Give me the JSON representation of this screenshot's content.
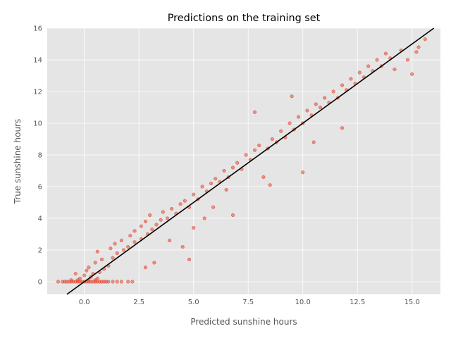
{
  "chart_data": {
    "type": "scatter",
    "title": "Predictions on the training set",
    "xlabel": "Predicted sunshine hours",
    "ylabel": "True sunshine hours",
    "xlim": [
      -1.7,
      16.3
    ],
    "ylim": [
      -0.8,
      16
    ],
    "xticks": [
      "0.0",
      "2.5",
      "5.0",
      "7.5",
      "10.0",
      "12.5",
      "15.0"
    ],
    "yticks": [
      "0",
      "2",
      "4",
      "6",
      "8",
      "10",
      "12",
      "14",
      "16"
    ],
    "grid": true,
    "reference_line": {
      "label": "y = x",
      "slope": 1,
      "intercept": 0
    },
    "point_color": "#E24A33",
    "background_color": "#E5E5E5",
    "series": [
      {
        "points": [
          [
            -1.2,
            0
          ],
          [
            -1.0,
            0
          ],
          [
            -0.9,
            0
          ],
          [
            -0.8,
            0
          ],
          [
            -0.7,
            0
          ],
          [
            -0.6,
            0
          ],
          [
            -0.5,
            0
          ],
          [
            -0.4,
            0
          ],
          [
            -0.3,
            0
          ],
          [
            -0.2,
            0
          ],
          [
            -0.1,
            0
          ],
          [
            0.0,
            0
          ],
          [
            0.1,
            0
          ],
          [
            0.2,
            0
          ],
          [
            0.3,
            0
          ],
          [
            0.4,
            0
          ],
          [
            0.5,
            0
          ],
          [
            0.6,
            0
          ],
          [
            0.7,
            0
          ],
          [
            0.8,
            0
          ],
          [
            0.9,
            0
          ],
          [
            1.0,
            0
          ],
          [
            1.1,
            0
          ],
          [
            1.3,
            0
          ],
          [
            1.5,
            0
          ],
          [
            1.7,
            0
          ],
          [
            2.0,
            0
          ],
          [
            2.2,
            0
          ],
          [
            -0.6,
            0.1
          ],
          [
            -0.3,
            0.1
          ],
          [
            0.2,
            0.1
          ],
          [
            0.5,
            0.1
          ],
          [
            -0.2,
            0.2
          ],
          [
            0.3,
            0.3
          ],
          [
            0.6,
            0.2
          ],
          [
            0.0,
            0.4
          ],
          [
            0.4,
            0.5
          ],
          [
            -0.4,
            0.5
          ],
          [
            0.7,
            0.6
          ],
          [
            0.1,
            0.7
          ],
          [
            0.9,
            0.8
          ],
          [
            0.2,
            0.9
          ],
          [
            1.1,
            1.0
          ],
          [
            0.5,
            1.2
          ],
          [
            0.8,
            1.4
          ],
          [
            1.3,
            1.5
          ],
          [
            0.6,
            1.9
          ],
          [
            1.5,
            1.8
          ],
          [
            1.2,
            2.1
          ],
          [
            1.8,
            2.0
          ],
          [
            1.4,
            2.4
          ],
          [
            2.0,
            2.2
          ],
          [
            1.7,
            2.6
          ],
          [
            2.3,
            2.5
          ],
          [
            2.1,
            2.9
          ],
          [
            2.6,
            2.7
          ],
          [
            2.3,
            3.2
          ],
          [
            2.9,
            3.0
          ],
          [
            2.6,
            3.5
          ],
          [
            3.1,
            3.3
          ],
          [
            2.8,
            3.8
          ],
          [
            3.3,
            3.6
          ],
          [
            3.0,
            4.2
          ],
          [
            3.5,
            3.9
          ],
          [
            3.2,
            1.2
          ],
          [
            2.8,
            0.9
          ],
          [
            3.6,
            4.4
          ],
          [
            3.8,
            4.0
          ],
          [
            4.0,
            4.6
          ],
          [
            4.2,
            4.3
          ],
          [
            3.9,
            2.6
          ],
          [
            4.4,
            4.9
          ],
          [
            4.5,
            2.2
          ],
          [
            4.6,
            5.1
          ],
          [
            4.8,
            4.7
          ],
          [
            4.8,
            1.4
          ],
          [
            5.0,
            5.5
          ],
          [
            5.2,
            5.2
          ],
          [
            5.0,
            3.4
          ],
          [
            5.4,
            6.0
          ],
          [
            5.6,
            5.7
          ],
          [
            5.5,
            4.0
          ],
          [
            5.8,
            6.2
          ],
          [
            6.0,
            6.5
          ],
          [
            5.9,
            4.7
          ],
          [
            6.2,
            6.3
          ],
          [
            6.4,
            7.0
          ],
          [
            6.6,
            6.6
          ],
          [
            6.5,
            5.8
          ],
          [
            6.8,
            7.2
          ],
          [
            7.0,
            7.5
          ],
          [
            6.8,
            4.2
          ],
          [
            7.2,
            7.1
          ],
          [
            7.4,
            8.0
          ],
          [
            7.6,
            7.7
          ],
          [
            7.8,
            10.7
          ],
          [
            7.8,
            8.3
          ],
          [
            8.0,
            8.6
          ],
          [
            8.2,
            6.6
          ],
          [
            8.4,
            8.4
          ],
          [
            8.6,
            9.0
          ],
          [
            8.5,
            6.1
          ],
          [
            8.8,
            8.8
          ],
          [
            9.0,
            9.5
          ],
          [
            9.2,
            9.1
          ],
          [
            9.4,
            10.0
          ],
          [
            9.6,
            9.6
          ],
          [
            9.5,
            11.7
          ],
          [
            9.8,
            10.4
          ],
          [
            10.0,
            10.0
          ],
          [
            10.0,
            6.9
          ],
          [
            10.2,
            10.8
          ],
          [
            10.4,
            10.5
          ],
          [
            10.5,
            8.8
          ],
          [
            10.6,
            11.2
          ],
          [
            10.8,
            11.0
          ],
          [
            11.0,
            11.6
          ],
          [
            11.2,
            11.3
          ],
          [
            11.4,
            12.0
          ],
          [
            11.6,
            11.6
          ],
          [
            11.8,
            12.4
          ],
          [
            11.8,
            9.7
          ],
          [
            12.0,
            12.1
          ],
          [
            12.2,
            12.8
          ],
          [
            12.4,
            12.5
          ],
          [
            12.6,
            13.2
          ],
          [
            12.8,
            12.9
          ],
          [
            13.0,
            13.6
          ],
          [
            13.2,
            13.3
          ],
          [
            13.4,
            14.0
          ],
          [
            13.6,
            13.6
          ],
          [
            13.8,
            14.4
          ],
          [
            14.0,
            14.1
          ],
          [
            14.2,
            13.4
          ],
          [
            14.5,
            14.6
          ],
          [
            14.8,
            14.0
          ],
          [
            15.2,
            14.5
          ],
          [
            15.0,
            13.1
          ],
          [
            15.3,
            14.8
          ],
          [
            15.6,
            15.3
          ]
        ]
      }
    ]
  }
}
